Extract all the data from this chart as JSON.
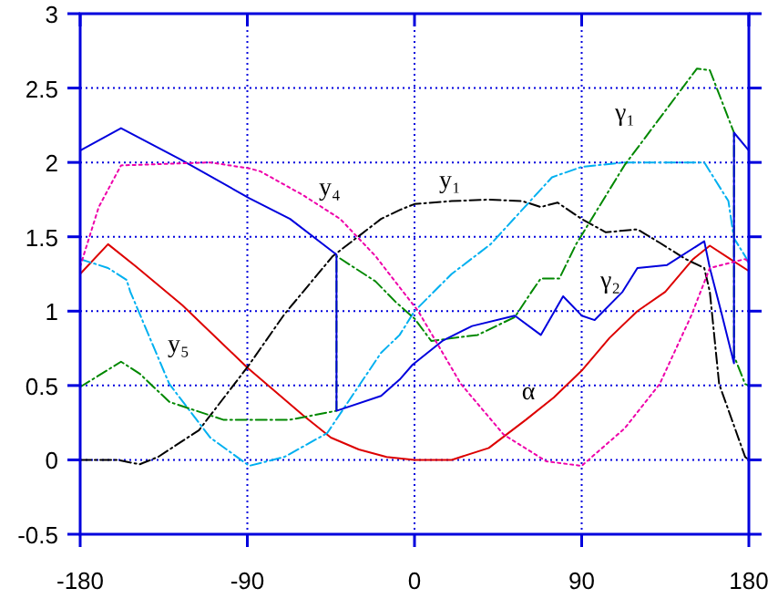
{
  "chart_data": {
    "type": "line",
    "xlim": [
      -180,
      180
    ],
    "xticks": [
      -180,
      -90,
      0,
      90,
      180
    ],
    "ylim": [
      -0.5,
      3
    ],
    "yticks": [
      -0.5,
      0,
      0.5,
      1,
      1.5,
      2,
      2.5,
      3
    ],
    "grid": true,
    "series": [
      {
        "name": "α",
        "color": "#dd0000",
        "line_style": "solid",
        "x": [
          -180,
          -165,
          -150,
          -125,
          -90,
          -60,
          -45,
          -30,
          -15,
          0,
          20,
          40,
          60,
          75,
          90,
          105,
          120,
          135,
          150,
          159,
          170,
          180
        ],
        "values": [
          1.25,
          1.45,
          1.3,
          1.04,
          0.62,
          0.3,
          0.15,
          0.07,
          0.02,
          0,
          0,
          0.08,
          0.27,
          0.42,
          0.6,
          0.82,
          1.0,
          1.13,
          1.35,
          1.44,
          1.35,
          1.27
        ]
      },
      {
        "name": "y₁",
        "color": "#000000",
        "line_style": "dashed",
        "x": [
          -180,
          -160,
          -148,
          -138,
          -116,
          -89,
          -70,
          -44,
          -18,
          -8,
          0,
          20,
          40,
          58,
          68,
          77,
          90,
          103,
          120,
          132,
          146,
          156,
          159,
          164,
          178,
          180
        ],
        "values": [
          0,
          0,
          -0.03,
          0.02,
          0.2,
          0.64,
          0.98,
          1.37,
          1.62,
          1.68,
          1.72,
          1.74,
          1.75,
          1.74,
          1.7,
          1.73,
          1.62,
          1.53,
          1.55,
          1.46,
          1.35,
          1.29,
          1.13,
          0.51,
          0.02,
          0
        ]
      },
      {
        "name": "y₅",
        "color": "#00b0f0",
        "line_style": "dashed",
        "x": [
          -180,
          -165,
          -155,
          -153,
          -132,
          -110,
          -89,
          -70,
          -47,
          -18,
          -8,
          0,
          20,
          41,
          74,
          90,
          113,
          156,
          169,
          172,
          178,
          180
        ],
        "values": [
          1.35,
          1.29,
          1.21,
          1.13,
          0.51,
          0.15,
          -0.04,
          0.02,
          0.18,
          0.72,
          0.84,
          1.0,
          1.25,
          1.45,
          1.9,
          1.97,
          2.0,
          2.0,
          1.74,
          1.49,
          1.37,
          1.32
        ]
      },
      {
        "name": "γ₁",
        "color": "#008800",
        "line_style": "dashed",
        "x": [
          -180,
          -158,
          -148,
          -132,
          -103,
          -67,
          -42,
          -42,
          -21,
          -10,
          0,
          9,
          34,
          54,
          63,
          68,
          78,
          87,
          113,
          152,
          159,
          172,
          172,
          178,
          180
        ],
        "values": [
          0.49,
          0.66,
          0.58,
          0.39,
          0.27,
          0.27,
          0.33,
          1.37,
          1.2,
          1.06,
          0.95,
          0.8,
          0.84,
          0.96,
          1.13,
          1.22,
          1.22,
          1.45,
          1.98,
          2.63,
          2.62,
          2.2,
          0.7,
          0.51,
          0.5
        ]
      },
      {
        "name": "γ₂",
        "color": "#0000dd",
        "line_style": "solid",
        "x": [
          -180,
          -158,
          -126,
          -89,
          -67,
          -42,
          -42,
          -18,
          -8,
          -1,
          15,
          31,
          54,
          68,
          80,
          90,
          97,
          112,
          120,
          136,
          156,
          159,
          165,
          172,
          172,
          180
        ],
        "values": [
          2.08,
          2.23,
          2.02,
          1.76,
          1.62,
          1.38,
          0.33,
          0.43,
          0.54,
          0.64,
          0.8,
          0.9,
          0.97,
          0.84,
          1.1,
          0.97,
          0.94,
          1.13,
          1.29,
          1.31,
          1.47,
          1.29,
          1.0,
          0.65,
          2.2,
          2.08
        ]
      },
      {
        "name": "y₄",
        "color": "#ee00aa",
        "line_style": "dotted",
        "x": [
          -180,
          -170,
          -158,
          -110,
          -89,
          -83,
          -60,
          -40,
          -21,
          -8,
          2,
          25,
          48,
          71,
          90,
          113,
          132,
          149,
          159,
          178,
          180
        ],
        "values": [
          1.3,
          1.7,
          1.98,
          2.0,
          1.96,
          1.94,
          1.78,
          1.62,
          1.37,
          1.16,
          1.0,
          0.51,
          0.17,
          -0.01,
          -0.04,
          0.21,
          0.51,
          0.97,
          1.29,
          1.35,
          1.33
        ]
      }
    ]
  }
}
